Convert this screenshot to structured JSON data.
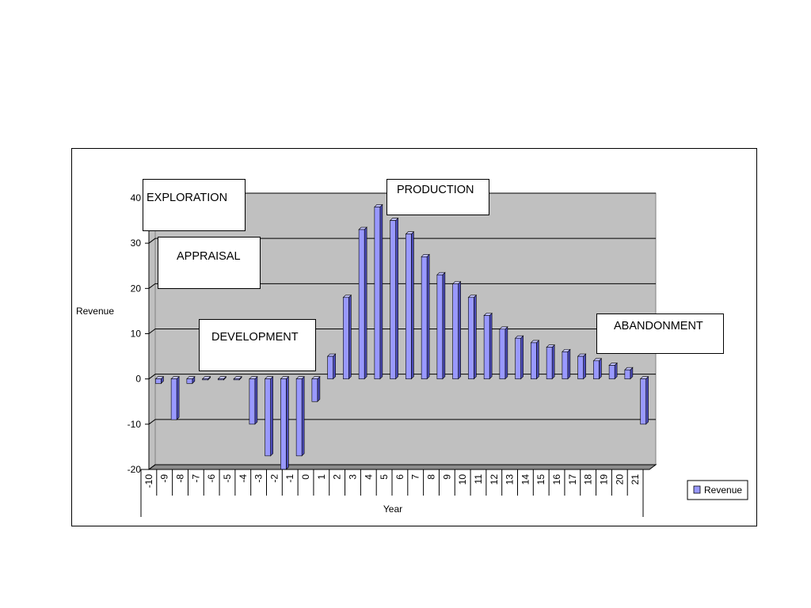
{
  "chart_data": {
    "type": "bar",
    "title": "",
    "xlabel": "Year",
    "ylabel": "Revenue",
    "ylim": [
      -20,
      40
    ],
    "yticks": [
      -20,
      -10,
      0,
      10,
      20,
      30,
      40
    ],
    "grid": true,
    "legend": {
      "position": "right",
      "entries": [
        "Revenue"
      ]
    },
    "categories": [
      "-10",
      "-9",
      "-8",
      "-7",
      "-6",
      "-5",
      "-4",
      "-3",
      "-2",
      "-1",
      "0",
      "1",
      "2",
      "3",
      "4",
      "5",
      "6",
      "7",
      "8",
      "9",
      "10",
      "11",
      "12",
      "13",
      "14",
      "15",
      "16",
      "17",
      "18",
      "19",
      "20",
      "21"
    ],
    "series": [
      {
        "name": "Revenue",
        "values": [
          -1,
          -9,
          -1,
          0,
          0,
          0,
          -10,
          -17,
          -20,
          -17,
          -5,
          5,
          18,
          33,
          38,
          35,
          32,
          27,
          23,
          21,
          18,
          14,
          11,
          9,
          8,
          7,
          6,
          5,
          4,
          3,
          2,
          -10
        ]
      }
    ],
    "colors": {
      "bar_face": "#9999ff",
      "bar_side": "#4b4bb8",
      "bar_top": "#c2c2ff",
      "plot_bg": "#c0c0c0",
      "floor": "#8c8c8c"
    },
    "annotations": [
      "EXPLORATION",
      "APPRAISAL",
      "DEVELOPMENT",
      "PRODUCTION",
      "ABANDONMENT"
    ]
  }
}
